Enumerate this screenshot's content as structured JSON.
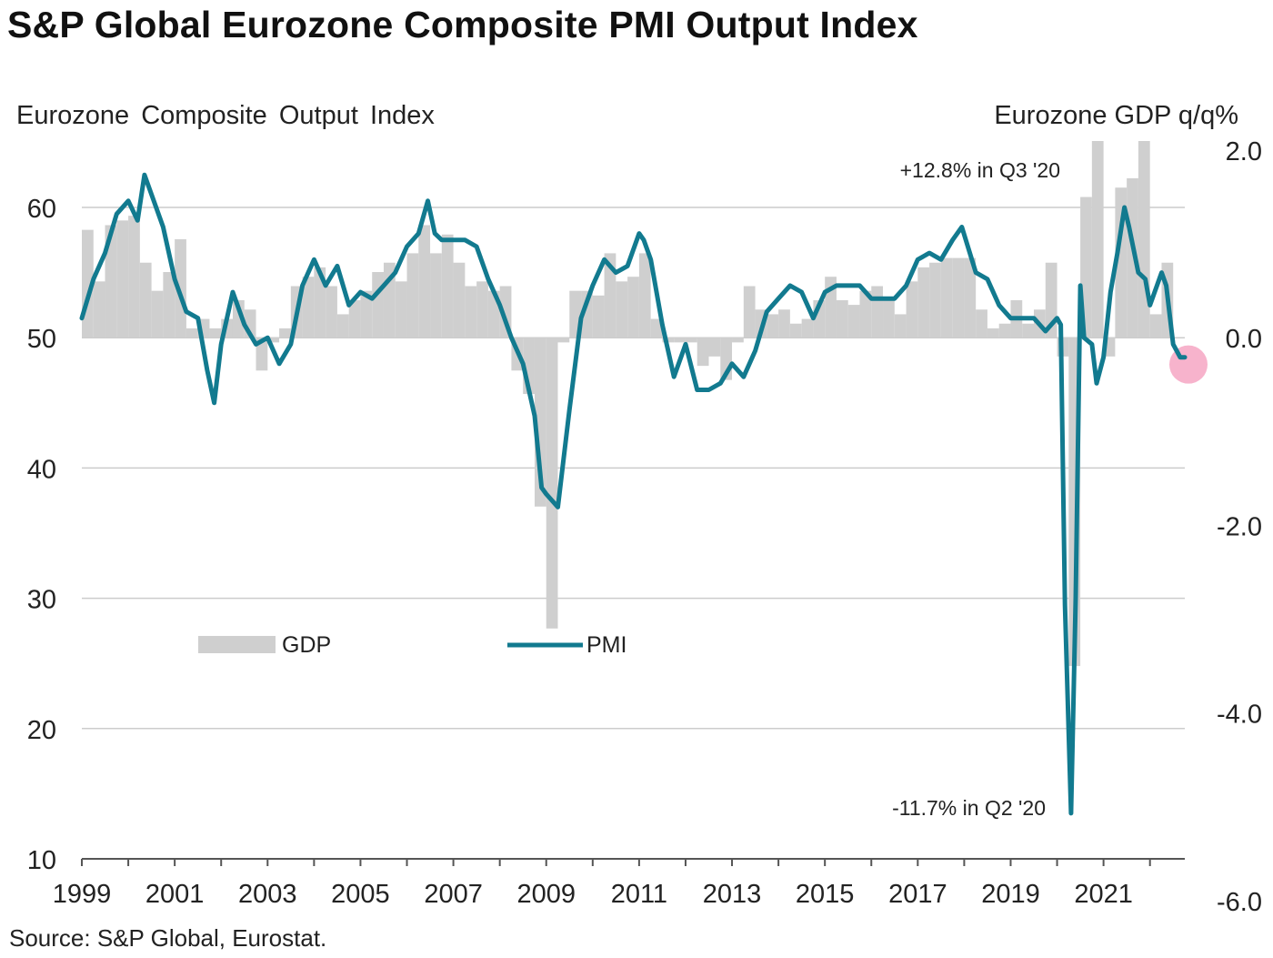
{
  "title": "S&P Global Eurozone Composite PMI Output Index",
  "source": "Source: S&P Global, Eurostat.",
  "colors": {
    "pmi_line": "#127a8f",
    "gdp_bars": "#cfcfcf",
    "gridline": "#cccccc",
    "axis": "#555555",
    "highlight": "#f7b3cc"
  },
  "chart_data": {
    "type": "bar+line",
    "left_axis": {
      "label": "Eurozone Composite Output Index",
      "ylim": [
        10,
        65
      ],
      "ticks": [
        10,
        20,
        30,
        40,
        50,
        60
      ],
      "tick_labels": [
        "10",
        "20",
        "30",
        "40",
        "50",
        "60"
      ]
    },
    "right_axis": {
      "label": "Eurozone GDP q/q%",
      "ylim": [
        -6.0,
        2.0
      ],
      "ticks": [
        -6.0,
        -4.0,
        -2.0,
        0.0,
        2.0
      ],
      "tick_labels": [
        "-6.0",
        "-4.0",
        "-2.0",
        "0.0",
        "2.0"
      ]
    },
    "x_axis": {
      "range": [
        1999,
        2022.75
      ],
      "tick_labels": [
        "1999",
        "2001",
        "2003",
        "2005",
        "2007",
        "2009",
        "2011",
        "2013",
        "2015",
        "2017",
        "2019",
        "2021"
      ]
    },
    "grid": true,
    "legend": [
      {
        "name": "GDP",
        "kind": "bar"
      },
      {
        "name": "PMI",
        "kind": "line"
      }
    ],
    "annotations": [
      "+12.8% in Q3 '20",
      "-11.7% in Q2 '20"
    ],
    "gdp_series": {
      "name": "GDP",
      "x": [
        1999.0,
        1999.25,
        1999.5,
        1999.75,
        2000.0,
        2000.25,
        2000.5,
        2000.75,
        2001.0,
        2001.25,
        2001.5,
        2001.75,
        2002.0,
        2002.25,
        2002.5,
        2002.75,
        2003.0,
        2003.25,
        2003.5,
        2003.75,
        2004.0,
        2004.25,
        2004.5,
        2004.75,
        2005.0,
        2005.25,
        2005.5,
        2005.75,
        2006.0,
        2006.25,
        2006.5,
        2006.75,
        2007.0,
        2007.25,
        2007.5,
        2007.75,
        2008.0,
        2008.25,
        2008.5,
        2008.75,
        2009.0,
        2009.25,
        2009.5,
        2009.75,
        2010.0,
        2010.25,
        2010.5,
        2010.75,
        2011.0,
        2011.25,
        2011.5,
        2011.75,
        2012.0,
        2012.25,
        2012.5,
        2012.75,
        2013.0,
        2013.25,
        2013.5,
        2013.75,
        2014.0,
        2014.25,
        2014.5,
        2014.75,
        2015.0,
        2015.25,
        2015.5,
        2015.75,
        2016.0,
        2016.25,
        2016.5,
        2016.75,
        2017.0,
        2017.25,
        2017.5,
        2017.75,
        2018.0,
        2018.25,
        2018.5,
        2018.75,
        2019.0,
        2019.25,
        2019.5,
        2019.75,
        2020.0,
        2020.25,
        2020.5,
        2020.75,
        2021.0,
        2021.25,
        2021.5,
        2021.75,
        2022.0,
        2022.25
      ],
      "values": [
        1.15,
        0.6,
        1.2,
        1.25,
        1.3,
        0.8,
        0.5,
        0.7,
        1.05,
        0.1,
        0.2,
        0.1,
        0.2,
        0.4,
        0.3,
        -0.35,
        -0.05,
        0.1,
        0.55,
        0.65,
        0.75,
        0.55,
        0.25,
        0.4,
        0.5,
        0.7,
        0.8,
        0.6,
        0.9,
        1.2,
        0.9,
        1.1,
        0.8,
        0.55,
        0.6,
        0.5,
        0.55,
        -0.35,
        -0.6,
        -1.8,
        -3.1,
        -0.05,
        0.5,
        0.5,
        0.45,
        0.9,
        0.6,
        0.65,
        0.9,
        0.2,
        -0.05,
        -0.05,
        -0.05,
        -0.3,
        -0.2,
        -0.45,
        -0.05,
        0.55,
        0.3,
        0.25,
        0.3,
        0.15,
        0.2,
        0.4,
        0.65,
        0.4,
        0.35,
        0.5,
        0.55,
        0.4,
        0.25,
        0.6,
        0.75,
        0.8,
        0.85,
        0.85,
        0.85,
        0.3,
        0.1,
        0.15,
        0.4,
        0.15,
        0.3,
        0.8,
        -0.2,
        -3.5,
        1.5,
        2.6,
        -0.2,
        1.6,
        1.7,
        2.5,
        0.25,
        0.8
      ]
    },
    "pmi_series": {
      "name": "PMI",
      "x": [
        1999.0,
        1999.25,
        1999.5,
        1999.75,
        2000.0,
        2000.2,
        2000.35,
        2000.5,
        2000.75,
        2001.0,
        2001.25,
        2001.5,
        2001.7,
        2001.85,
        2002.0,
        2002.25,
        2002.5,
        2002.75,
        2003.0,
        2003.25,
        2003.5,
        2003.75,
        2004.0,
        2004.25,
        2004.5,
        2004.75,
        2005.0,
        2005.25,
        2005.5,
        2005.75,
        2006.0,
        2006.25,
        2006.45,
        2006.6,
        2006.75,
        2007.0,
        2007.25,
        2007.5,
        2007.75,
        2008.0,
        2008.25,
        2008.5,
        2008.75,
        2008.9,
        2009.0,
        2009.25,
        2009.5,
        2009.75,
        2010.0,
        2010.25,
        2010.5,
        2010.75,
        2011.0,
        2011.1,
        2011.25,
        2011.5,
        2011.75,
        2012.0,
        2012.25,
        2012.5,
        2012.75,
        2013.0,
        2013.25,
        2013.5,
        2013.75,
        2014.0,
        2014.25,
        2014.5,
        2014.75,
        2015.0,
        2015.25,
        2015.5,
        2015.75,
        2016.0,
        2016.25,
        2016.5,
        2016.75,
        2017.0,
        2017.25,
        2017.5,
        2017.75,
        2017.95,
        2018.25,
        2018.5,
        2018.75,
        2019.0,
        2019.25,
        2019.5,
        2019.75,
        2020.0,
        2020.08,
        2020.17,
        2020.3,
        2020.4,
        2020.5,
        2020.58,
        2020.75,
        2020.85,
        2021.0,
        2021.15,
        2021.3,
        2021.45,
        2021.55,
        2021.75,
        2021.9,
        2022.0,
        2022.25,
        2022.35,
        2022.5,
        2022.65,
        2022.75
      ],
      "values": [
        51.5,
        54.5,
        56.5,
        59.5,
        60.5,
        59.0,
        62.5,
        61.0,
        58.5,
        54.5,
        52.0,
        51.5,
        47.5,
        45.0,
        49.5,
        53.5,
        51.0,
        49.5,
        50.0,
        48.0,
        49.5,
        54.0,
        56.0,
        54.0,
        55.5,
        52.5,
        53.5,
        53.0,
        54.0,
        55.0,
        57.0,
        58.0,
        60.5,
        58.0,
        57.5,
        57.5,
        57.5,
        57.0,
        54.5,
        52.5,
        50.0,
        48.0,
        44.0,
        38.5,
        38.0,
        37.0,
        44.5,
        51.5,
        54.0,
        56.0,
        55.0,
        55.5,
        58.0,
        57.5,
        56.0,
        51.0,
        47.0,
        49.5,
        46.0,
        46.0,
        46.5,
        48.0,
        47.0,
        49.0,
        52.0,
        53.0,
        54.0,
        53.5,
        51.5,
        53.5,
        54.0,
        54.0,
        54.0,
        53.0,
        53.0,
        53.0,
        54.0,
        56.0,
        56.5,
        56.0,
        57.5,
        58.5,
        55.0,
        54.5,
        52.5,
        51.5,
        51.5,
        51.5,
        50.5,
        51.5,
        51.0,
        29.5,
        13.5,
        30.0,
        54.0,
        50.0,
        49.5,
        46.5,
        48.5,
        53.5,
        56.5,
        60.0,
        58.5,
        55.0,
        54.5,
        52.5,
        55.0,
        54.0,
        49.5,
        48.5,
        48.5
      ]
    },
    "highlight_point": {
      "x": 2022.75,
      "y": 48.5
    }
  }
}
